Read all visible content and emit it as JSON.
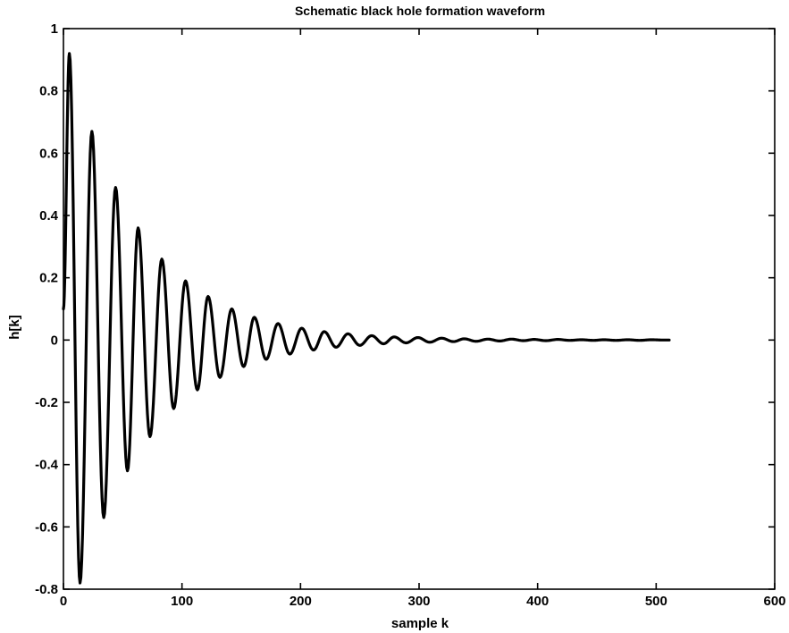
{
  "chart_data": {
    "type": "line",
    "title": "Schematic black hole formation waveform",
    "xlabel": "sample k",
    "ylabel": "h[k]",
    "xlim": [
      0,
      600
    ],
    "ylim": [
      -0.8,
      1
    ],
    "xticks": [
      0,
      100,
      200,
      300,
      400,
      500,
      600
    ],
    "xtick_labels": [
      "0",
      "100",
      "200",
      "300",
      "400",
      "500",
      "600"
    ],
    "yticks": [
      -0.8,
      -0.6,
      -0.4,
      -0.2,
      0,
      0.2,
      0.4,
      0.6,
      0.8,
      1
    ],
    "ytick_labels": [
      "-0.8",
      "-0.6",
      "-0.4",
      "-0.2",
      "0",
      "0.2",
      "0.4",
      "0.6",
      "0.8",
      "1"
    ],
    "grid": false,
    "line_color": "#000000",
    "series": [
      {
        "x": [
          0,
          5,
          14,
          24,
          34,
          44,
          54,
          63,
          73,
          83,
          93,
          103,
          113,
          122,
          132,
          142,
          152,
          161,
          171,
          181,
          191,
          201,
          211,
          220,
          230,
          240,
          250,
          260,
          270,
          279,
          289,
          299,
          309,
          319,
          329,
          338,
          348,
          358,
          368,
          378,
          388,
          397,
          407,
          417,
          427,
          437,
          447,
          456,
          466,
          476,
          486,
          496,
          506,
          511
        ],
        "y": [
          0.1,
          0.92,
          -0.78,
          0.67,
          -0.57,
          0.49,
          -0.42,
          0.36,
          -0.31,
          0.26,
          -0.22,
          0.19,
          -0.16,
          0.14,
          -0.12,
          0.1,
          -0.085,
          0.073,
          -0.062,
          0.053,
          -0.045,
          0.038,
          -0.032,
          0.027,
          -0.023,
          0.02,
          -0.017,
          0.014,
          -0.012,
          0.01,
          -0.009,
          0.008,
          -0.007,
          0.006,
          -0.005,
          0.004,
          -0.004,
          0.003,
          -0.003,
          0.003,
          -0.002,
          0.002,
          -0.002,
          0.002,
          -0.001,
          0.001,
          -0.001,
          0.001,
          -0.001,
          0.001,
          -0.001,
          0.001,
          0,
          0
        ]
      }
    ]
  }
}
